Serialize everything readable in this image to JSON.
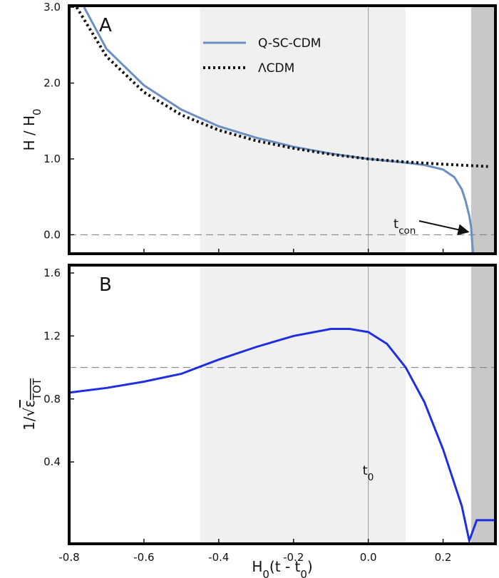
{
  "chart_data": [
    {
      "type": "line",
      "panel": "A",
      "ylabel": [
        {
          "t": "H / H"
        },
        {
          "t": "0",
          "sub": true
        }
      ],
      "xlim": [
        -0.8,
        0.34
      ],
      "ylim": [
        -0.25,
        3.02
      ],
      "xticks": [
        -0.8,
        -0.6,
        -0.4,
        -0.2,
        0,
        0.2
      ],
      "yticks": [
        {
          "value": 0,
          "label": "0.0"
        },
        {
          "value": 1,
          "label": "1.0"
        },
        {
          "value": 2,
          "label": "2.0"
        },
        {
          "value": 3,
          "label": "3.0"
        }
      ],
      "shaded": [
        {
          "from": -0.45,
          "to": 0.1,
          "color": "#f0f0f0"
        },
        {
          "from": 0.275,
          "to": 0.34,
          "color": "#c8c8c8"
        }
      ],
      "vline": 0,
      "hline": 0,
      "annotation": [
        {
          "t": "t"
        },
        {
          "t": "con",
          "sub": true
        }
      ],
      "series": [
        {
          "name": "Q-SC-CDM",
          "color": "#6a8fc0",
          "style": "solid",
          "x": [
            -0.76,
            -0.7,
            -0.6,
            -0.5,
            -0.4,
            -0.3,
            -0.2,
            -0.1,
            0,
            0.1,
            0.15,
            0.2,
            0.23,
            0.25,
            0.26,
            0.27,
            0.275,
            0.28
          ],
          "values": [
            3.0,
            2.45,
            1.97,
            1.65,
            1.43,
            1.28,
            1.16,
            1.07,
            1.0,
            0.95,
            0.92,
            0.86,
            0.76,
            0.6,
            0.45,
            0.25,
            0.1,
            -0.25
          ]
        },
        {
          "name": "ΛCDM",
          "color": "#111111",
          "style": "dotted",
          "x": [
            -0.78,
            -0.7,
            -0.6,
            -0.5,
            -0.4,
            -0.3,
            -0.2,
            -0.1,
            0,
            0.1,
            0.2,
            0.32
          ],
          "values": [
            3.0,
            2.35,
            1.88,
            1.58,
            1.38,
            1.24,
            1.14,
            1.06,
            1.0,
            0.96,
            0.93,
            0.9
          ]
        }
      ]
    },
    {
      "type": "line",
      "panel": "B",
      "ylabel": [
        {
          "t": "1/√"
        },
        {
          "t": "ε",
          "overline": true
        },
        {
          "t": "TOT",
          "sub": true,
          "overline": true
        }
      ],
      "xlabel": [
        {
          "t": "H"
        },
        {
          "t": "0",
          "sub": true
        },
        {
          "t": "(t - t"
        },
        {
          "t": "0",
          "sub": true
        },
        {
          "t": ")"
        }
      ],
      "xlim": [
        -0.8,
        0.34
      ],
      "ylim": [
        -0.12,
        1.65
      ],
      "xticks": [
        -0.8,
        -0.6,
        -0.4,
        -0.2,
        {
          "value": 0,
          "label": "0.0"
        },
        0.2
      ],
      "yticks": [
        0.4,
        0.8,
        1.2,
        1.6
      ],
      "shaded": [
        {
          "from": -0.45,
          "to": 0.1,
          "color": "#f0f0f0"
        },
        {
          "from": 0.275,
          "to": 0.34,
          "color": "#c8c8c8"
        }
      ],
      "vline": 0,
      "hline": 1.0,
      "annotation": [
        {
          "t": "t"
        },
        {
          "t": "0",
          "sub": true
        }
      ],
      "series": [
        {
          "color": "#1f2fe0",
          "style": "solid",
          "x": [
            -0.8,
            -0.7,
            -0.6,
            -0.5,
            -0.4,
            -0.3,
            -0.2,
            -0.1,
            -0.05,
            0,
            0.05,
            0.1,
            0.15,
            0.2,
            0.25,
            0.27,
            0.29,
            0.3,
            0.34
          ],
          "values": [
            0.84,
            0.87,
            0.91,
            0.96,
            1.05,
            1.13,
            1.2,
            1.245,
            1.245,
            1.225,
            1.15,
            1.0,
            0.78,
            0.48,
            0.12,
            -0.1,
            0.03,
            0.03,
            0.03
          ]
        }
      ]
    }
  ]
}
